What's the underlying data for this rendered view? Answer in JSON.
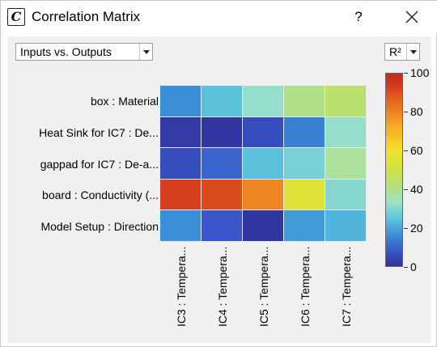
{
  "window": {
    "title": "Correlation Matrix",
    "help": "?",
    "app_icon": "C"
  },
  "toolbar": {
    "view_select": "Inputs vs. Outputs",
    "metric_select": "R²"
  },
  "icons": {
    "app": "app-logo-icon",
    "close": "close-icon",
    "dropdown": "chevron-down-icon"
  },
  "chart_data": {
    "type": "heatmap",
    "rows": [
      "box : Material",
      "Heat Sink for IC7 : De...",
      "gappad for IC7 : De-a...",
      "board : Conductivity (...",
      "Model Setup : Direction"
    ],
    "columns": [
      "IC3 : Tempera...",
      "IC4 : Tempera...",
      "IC5 : Tempera...",
      "IC6 : Tempera...",
      "IC7 : Tempera..."
    ],
    "values": [
      [
        16,
        24,
        32,
        40,
        44
      ],
      [
        2,
        1,
        6,
        14,
        32
      ],
      [
        6,
        10,
        24,
        28,
        38
      ],
      [
        93,
        91,
        80,
        55,
        30
      ],
      [
        16,
        8,
        1,
        18,
        22
      ]
    ],
    "colorbar": {
      "label": "R²",
      "range": [
        0,
        100
      ],
      "ticks": [
        "0",
        "20",
        "40",
        "60",
        "80",
        "100"
      ]
    }
  }
}
